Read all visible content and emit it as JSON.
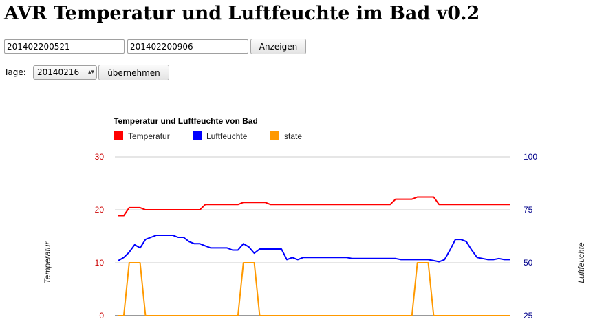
{
  "page": {
    "title": "AVR Temperatur und Luftfeuchte im Bad v0.2"
  },
  "form": {
    "from_value": "201402200521",
    "to_value": "201402200906",
    "show_button": "Anzeigen",
    "days_label": "Tage:",
    "days_value": "20140216",
    "apply_button": "übernehmen"
  },
  "colors": {
    "temperatur": "#ff0000",
    "luftfeuchte": "#0000ff",
    "state": "#ff9900",
    "left_axis": "#cc0000",
    "right_axis": "#00008b",
    "grid": "#cccccc"
  },
  "chart_data": {
    "type": "line",
    "title": "Temperatur und Luftfeuchte von Bad",
    "legend": {
      "placement": "top-left",
      "entries": [
        "Temperatur",
        "Luftfeuchte",
        "state"
      ]
    },
    "left_axis": {
      "label": "Temperatur",
      "range": [
        0,
        30
      ],
      "ticks": [
        0,
        10,
        20,
        30
      ]
    },
    "right_axis": {
      "label": "Luftfeuchte",
      "range": [
        25,
        100
      ],
      "ticks": [
        25,
        50,
        75,
        100
      ]
    },
    "grid": true,
    "n_points": 73,
    "series": [
      {
        "name": "Temperatur",
        "axis": "left",
        "points": [
          [
            0,
            18.9
          ],
          [
            1,
            18.9
          ],
          [
            2,
            20.4
          ],
          [
            3,
            20.4
          ],
          [
            4,
            20.4
          ],
          [
            5,
            20
          ],
          [
            15,
            20
          ],
          [
            16,
            21
          ],
          [
            22,
            21
          ],
          [
            23,
            21.4
          ],
          [
            27,
            21.4
          ],
          [
            28,
            21
          ],
          [
            50,
            21
          ],
          [
            51,
            22
          ],
          [
            54,
            22
          ],
          [
            55,
            22.4
          ],
          [
            58,
            22.4
          ],
          [
            59,
            21
          ],
          [
            72,
            21
          ]
        ]
      },
      {
        "name": "Luftfeuchte",
        "axis": "right",
        "points": [
          [
            0,
            51
          ],
          [
            1,
            52.5
          ],
          [
            2,
            55
          ],
          [
            3,
            58.5
          ],
          [
            4,
            57
          ],
          [
            5,
            61
          ],
          [
            6,
            62
          ],
          [
            7,
            63
          ],
          [
            10,
            63
          ],
          [
            11,
            62
          ],
          [
            12,
            62
          ],
          [
            13,
            60
          ],
          [
            14,
            59
          ],
          [
            15,
            59
          ],
          [
            16,
            58
          ],
          [
            17,
            57
          ],
          [
            20,
            57
          ],
          [
            21,
            56
          ],
          [
            22,
            56
          ],
          [
            23,
            59
          ],
          [
            24,
            57.5
          ],
          [
            25,
            54.5
          ],
          [
            26,
            56.5
          ],
          [
            30,
            56.5
          ],
          [
            31,
            51.5
          ],
          [
            32,
            52.5
          ],
          [
            33,
            51.5
          ],
          [
            34,
            52.5
          ],
          [
            42,
            52.5
          ],
          [
            43,
            52
          ],
          [
            51,
            52
          ],
          [
            52,
            51.5
          ],
          [
            57,
            51.5
          ],
          [
            58,
            51
          ],
          [
            59,
            50.5
          ],
          [
            60,
            51.5
          ],
          [
            61,
            56
          ],
          [
            62,
            61
          ],
          [
            63,
            61
          ],
          [
            64,
            60
          ],
          [
            65,
            56
          ],
          [
            66,
            52.5
          ],
          [
            67,
            52
          ],
          [
            68,
            51.5
          ],
          [
            69,
            51.5
          ],
          [
            70,
            52
          ],
          [
            71,
            51.5
          ],
          [
            72,
            51.5
          ]
        ]
      },
      {
        "name": "state",
        "axis": "left",
        "points": [
          [
            0,
            0
          ],
          [
            1,
            0
          ],
          [
            2,
            10
          ],
          [
            3,
            10
          ],
          [
            4,
            10
          ],
          [
            5,
            0
          ],
          [
            22,
            0
          ],
          [
            23,
            10
          ],
          [
            24,
            10
          ],
          [
            25,
            10
          ],
          [
            26,
            0
          ],
          [
            54,
            0
          ],
          [
            55,
            10
          ],
          [
            56,
            10
          ],
          [
            57,
            10
          ],
          [
            58,
            0
          ],
          [
            72,
            0
          ]
        ]
      }
    ]
  }
}
